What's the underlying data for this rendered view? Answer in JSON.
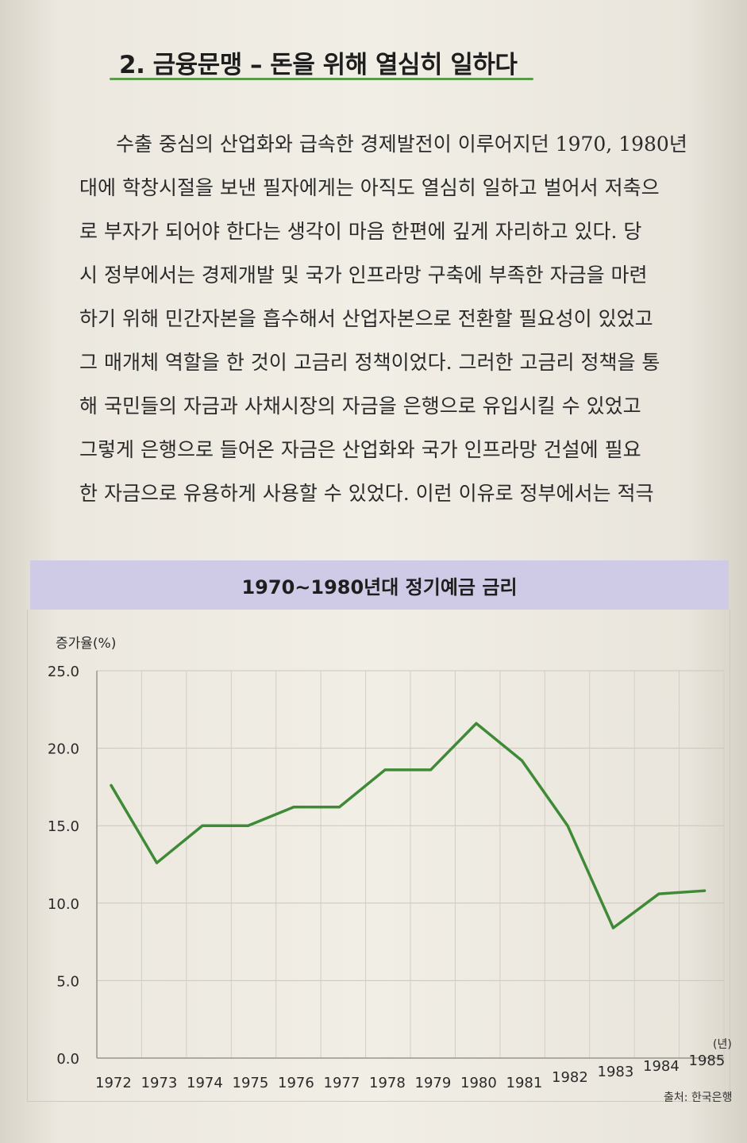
{
  "section_heading": "2. 금융문맹 – 돈을 위해 열심히 일하다",
  "paragraph_lines": [
    "수출 중심의 산업화와 급속한 경제발전이 이루어지던 1970, 1980년",
    "대에 학창시절을 보낸 필자에게는 아직도 열심히 일하고 벌어서 저축으",
    "로 부자가 되어야 한다는 생각이 마음 한편에 깊게 자리하고 있다. 당",
    "시 정부에서는 경제개발 및 국가 인프라망 구축에 부족한 자금을 마련",
    "하기 위해 민간자본을 흡수해서 산업자본으로 전환할 필요성이 있었고",
    "그 매개체 역할을 한 것이 고금리 정책이었다. 그러한 고금리 정책을 통",
    "해 국민들의 자금과 사채시장의 자금을 은행으로 유입시킬 수 있었고",
    "그렇게 은행으로 들어온 자금은 산업화와 국가 인프라망 건설에 필요",
    "한 자금으로 유용하게 사용할 수 있었다. 이런 이유로 정부에서는 적극"
  ],
  "source_note": "출처: 한국은행",
  "colors": {
    "line": "#3f8a37",
    "band": "#cfcbe6",
    "heading_rule": "#5a9a4c"
  },
  "chart_data": {
    "type": "line",
    "title": "1970~1980년대 정기예금 금리",
    "ylabel": "증가율(%)",
    "x_unit": "(년)",
    "ylim": [
      0,
      25
    ],
    "yticks": [
      "0.0",
      "5.0",
      "10.0",
      "15.0",
      "20.0",
      "25.0"
    ],
    "grid": true,
    "x": [
      "1972",
      "1973",
      "1974",
      "1975",
      "1976",
      "1977",
      "1978",
      "1979",
      "1980",
      "1981",
      "1982",
      "1983",
      "1984",
      "1985"
    ],
    "series": [
      {
        "values": [
          17.6,
          12.6,
          15.0,
          15.0,
          16.2,
          16.2,
          18.6,
          18.6,
          21.6,
          19.2,
          15.0,
          8.4,
          10.6,
          10.8
        ]
      }
    ]
  }
}
